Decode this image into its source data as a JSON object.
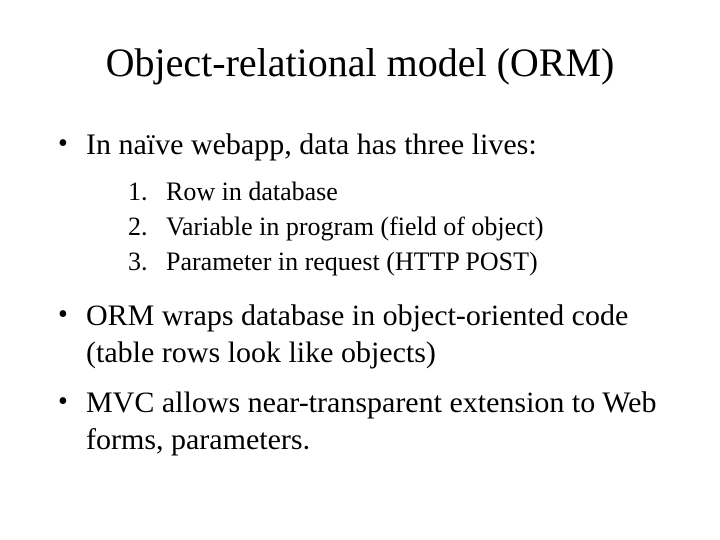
{
  "colors": {
    "background": "#ffffff",
    "text": "#000000"
  },
  "typography": {
    "family": "Times New Roman",
    "title_size_pt": 40,
    "bullet_size_pt": 30,
    "numbered_size_pt": 26
  },
  "slide": {
    "title": "Object-relational model (ORM)",
    "bullets": [
      {
        "text": "In naïve webapp, data has three lives:",
        "children": [
          "Row in database",
          "Variable in program (field of object)",
          "Parameter in request (HTTP POST)"
        ]
      },
      {
        "text": "ORM wraps database in object-oriented code (table rows look like objects)",
        "children": []
      },
      {
        "text": "MVC allows near-transparent extension to Web forms, parameters.",
        "children": []
      }
    ]
  }
}
